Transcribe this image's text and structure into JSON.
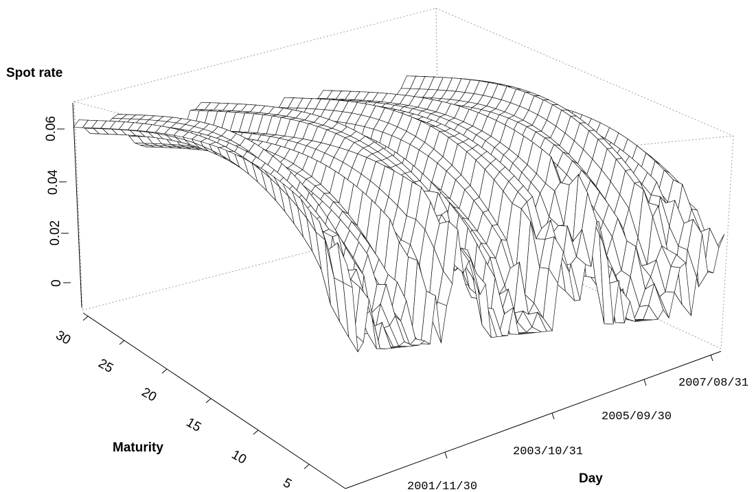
{
  "chart_data": {
    "type": "surface",
    "zlabel": "Spot rate",
    "ylabel": "Maturity",
    "xlabel": "Day",
    "z_ticks": [
      "0",
      "0.02",
      "0.04",
      "0.06"
    ],
    "z_tick_values": [
      0,
      0.02,
      0.04,
      0.06
    ],
    "maturity_ticks": [
      "30",
      "25",
      "20",
      "15",
      "10",
      "5"
    ],
    "maturity_tick_values": [
      30,
      25,
      20,
      15,
      10,
      5
    ],
    "day_ticks": [
      "2001/11/30",
      "2003/10/31",
      "2005/09/30",
      "2007/08/31"
    ],
    "zlim": [
      0,
      0.065
    ],
    "maturity_range": [
      1,
      30
    ],
    "day_range": [
      "2000/12/29",
      "2008/06/30"
    ],
    "surface_color": "#000000",
    "background": "#ffffff",
    "box": "dotted"
  }
}
